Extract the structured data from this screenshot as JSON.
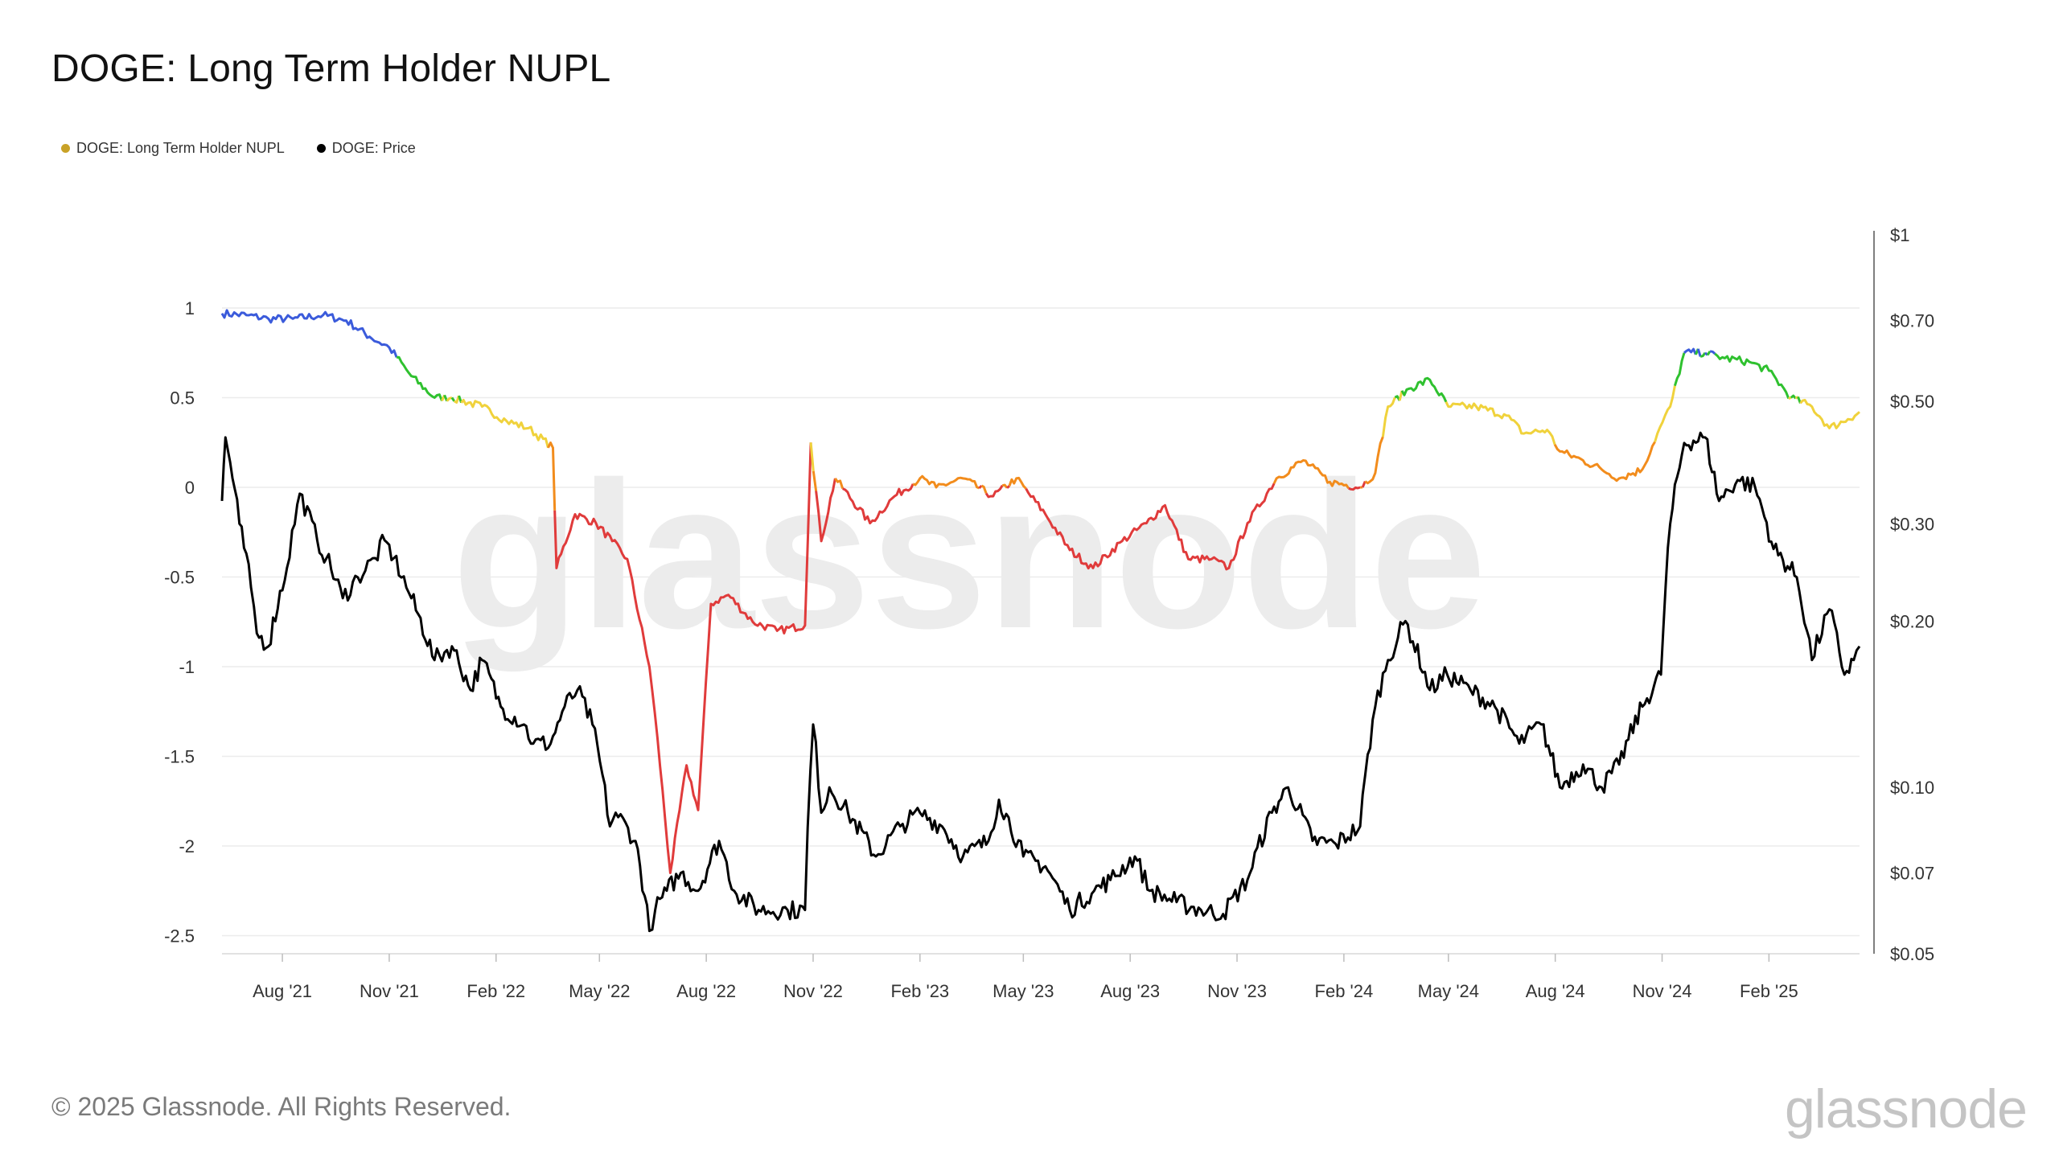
{
  "header": {
    "title": "DOGE: Long Term Holder NUPL"
  },
  "legend": {
    "items": [
      {
        "label": "DOGE: Long Term Holder NUPL",
        "color": "#c9a227"
      },
      {
        "label": "DOGE: Price",
        "color": "#000000"
      }
    ]
  },
  "footer": {
    "copyright": "© 2025 Glassnode. All Rights Reserved.",
    "logo": "glassnode"
  },
  "chart_data": {
    "type": "line",
    "title": "DOGE: Long Term Holder NUPL",
    "watermark": "glassnode",
    "x_tick_labels": [
      "Aug '21",
      "Nov '21",
      "Feb '22",
      "May '22",
      "Aug '22",
      "Nov '22",
      "Feb '23",
      "May '23",
      "Aug '23",
      "Nov '23",
      "Feb '24",
      "May '24",
      "Aug '24",
      "Nov '24",
      "Feb '25"
    ],
    "x_tick_dates": [
      "2021-08-01",
      "2021-11-01",
      "2022-02-01",
      "2022-05-01",
      "2022-08-01",
      "2022-11-01",
      "2023-02-01",
      "2023-05-01",
      "2023-08-01",
      "2023-11-01",
      "2024-02-01",
      "2024-05-01",
      "2024-08-01",
      "2024-11-01",
      "2025-02-01"
    ],
    "x_range": [
      "2021-06-10",
      "2025-04-20"
    ],
    "y_left": {
      "ticks": [
        1,
        0.5,
        0,
        -0.5,
        -1,
        -1.5,
        -2,
        -2.5
      ],
      "tick_labels": [
        "1",
        "0.5",
        "0",
        "-0.5",
        "-1",
        "-1.5",
        "-2",
        "-2.5"
      ],
      "range": [
        -2.6,
        1.1
      ]
    },
    "y_right": {
      "scale": "log",
      "ticks": [
        1,
        0.7,
        0.5,
        0.3,
        0.2,
        0.1,
        0.07,
        0.05
      ],
      "tick_labels": [
        "$1",
        "$0.70",
        "$0.50",
        "$0.30",
        "$0.20",
        "$0.10",
        "$0.07",
        "$0.05"
      ],
      "range": [
        0.05,
        1
      ]
    },
    "grid": true,
    "legend_position": "top-left",
    "nupl_color_bands": [
      {
        "min": 0.75,
        "color": "#3b5bdb"
      },
      {
        "min": 0.5,
        "color": "#2fc12f"
      },
      {
        "min": 0.25,
        "color": "#f0d23c"
      },
      {
        "min": 0.0,
        "color": "#f28c1c"
      },
      {
        "min": -9,
        "color": "#e03b3b"
      }
    ],
    "series": [
      {
        "name": "DOGE: Long Term Holder NUPL",
        "axis": "left",
        "x": [
          "2021-06-10",
          "2021-07-01",
          "2021-07-20",
          "2021-08-10",
          "2021-09-05",
          "2021-09-25",
          "2021-10-15",
          "2021-11-01",
          "2021-11-20",
          "2021-12-10",
          "2021-12-25",
          "2022-01-20",
          "2022-02-10",
          "2022-03-01",
          "2022-03-22",
          "2022-03-25",
          "2022-04-10",
          "2022-04-28",
          "2022-05-12",
          "2022-05-25",
          "2022-06-13",
          "2022-06-20",
          "2022-07-01",
          "2022-07-15",
          "2022-07-25",
          "2022-08-05",
          "2022-08-20",
          "2022-09-10",
          "2022-10-01",
          "2022-10-25",
          "2022-10-30",
          "2022-11-08",
          "2022-11-20",
          "2022-12-20",
          "2023-01-10",
          "2023-02-01",
          "2023-02-15",
          "2023-03-10",
          "2023-04-05",
          "2023-04-25",
          "2023-05-20",
          "2023-06-10",
          "2023-06-30",
          "2023-07-25",
          "2023-08-15",
          "2023-08-31",
          "2023-09-20",
          "2023-10-10",
          "2023-10-25",
          "2023-11-10",
          "2023-12-05",
          "2023-12-28",
          "2024-01-20",
          "2024-02-15",
          "2024-02-28",
          "2024-03-10",
          "2024-03-28",
          "2024-04-15",
          "2024-05-01",
          "2024-05-25",
          "2024-06-20",
          "2024-07-05",
          "2024-07-25",
          "2024-08-05",
          "2024-08-25",
          "2024-09-10",
          "2024-09-25",
          "2024-10-15",
          "2024-10-28",
          "2024-11-08",
          "2024-11-20",
          "2024-12-08",
          "2024-12-25",
          "2025-01-15",
          "2025-02-01",
          "2025-02-20",
          "2025-03-10",
          "2025-03-25",
          "2025-04-10",
          "2025-04-20"
        ],
        "values": [
          0.97,
          0.96,
          0.94,
          0.94,
          0.96,
          0.93,
          0.84,
          0.78,
          0.62,
          0.5,
          0.5,
          0.45,
          0.37,
          0.33,
          0.22,
          -0.45,
          -0.15,
          -0.2,
          -0.3,
          -0.4,
          -1.0,
          -1.4,
          -2.15,
          -1.55,
          -1.8,
          -0.65,
          -0.6,
          -0.75,
          -0.8,
          -0.77,
          0.25,
          -0.3,
          0.05,
          -0.2,
          -0.05,
          0.05,
          0.0,
          0.05,
          -0.05,
          0.05,
          -0.15,
          -0.35,
          -0.45,
          -0.3,
          -0.2,
          -0.1,
          -0.4,
          -0.4,
          -0.45,
          -0.2,
          0.05,
          0.15,
          0.03,
          0.0,
          0.08,
          0.45,
          0.55,
          0.6,
          0.45,
          0.45,
          0.4,
          0.3,
          0.32,
          0.2,
          0.15,
          0.1,
          0.05,
          0.1,
          0.3,
          0.45,
          0.75,
          0.75,
          0.72,
          0.7,
          0.65,
          0.5,
          0.45,
          0.33,
          0.38,
          0.42
        ]
      },
      {
        "name": "DOGE: Price",
        "axis": "right",
        "x": [
          "2021-06-10",
          "2021-06-13",
          "2021-06-25",
          "2021-07-05",
          "2021-07-10",
          "2021-07-20",
          "2021-08-05",
          "2021-08-16",
          "2021-08-31",
          "2021-09-08",
          "2021-09-22",
          "2021-10-05",
          "2021-10-20",
          "2021-10-28",
          "2021-11-05",
          "2021-11-20",
          "2021-12-10",
          "2021-12-25",
          "2022-01-10",
          "2022-01-20",
          "2022-02-05",
          "2022-02-25",
          "2022-03-05",
          "2022-03-20",
          "2022-04-01",
          "2022-04-12",
          "2022-04-25",
          "2022-05-10",
          "2022-05-15",
          "2022-06-01",
          "2022-06-13",
          "2022-06-18",
          "2022-06-28",
          "2022-07-10",
          "2022-07-25",
          "2022-08-12",
          "2022-08-25",
          "2022-09-15",
          "2022-10-10",
          "2022-10-25",
          "2022-11-01",
          "2022-11-08",
          "2022-11-15",
          "2022-12-01",
          "2022-12-25",
          "2023-01-15",
          "2023-02-01",
          "2023-02-20",
          "2023-03-10",
          "2023-04-01",
          "2023-04-10",
          "2023-05-01",
          "2023-05-20",
          "2023-06-10",
          "2023-07-01",
          "2023-07-15",
          "2023-08-05",
          "2023-08-18",
          "2023-09-10",
          "2023-10-01",
          "2023-10-20",
          "2023-11-10",
          "2023-12-01",
          "2023-12-15",
          "2024-01-05",
          "2024-01-25",
          "2024-02-15",
          "2024-02-28",
          "2024-03-10",
          "2024-03-25",
          "2024-04-15",
          "2024-04-30",
          "2024-05-20",
          "2024-06-10",
          "2024-07-01",
          "2024-07-20",
          "2024-08-05",
          "2024-08-25",
          "2024-09-10",
          "2024-09-25",
          "2024-10-15",
          "2024-10-31",
          "2024-11-08",
          "2024-11-20",
          "2024-12-08",
          "2024-12-20",
          "2025-01-05",
          "2025-01-20",
          "2025-02-05",
          "2025-02-25",
          "2025-03-10",
          "2025-03-25",
          "2025-04-07",
          "2025-04-15",
          "2025-04-20"
        ],
        "values": [
          0.33,
          0.43,
          0.3,
          0.23,
          0.19,
          0.18,
          0.25,
          0.34,
          0.28,
          0.26,
          0.22,
          0.24,
          0.26,
          0.28,
          0.26,
          0.22,
          0.17,
          0.18,
          0.15,
          0.17,
          0.14,
          0.13,
          0.12,
          0.12,
          0.14,
          0.15,
          0.13,
          0.085,
          0.09,
          0.08,
          0.055,
          0.06,
          0.065,
          0.07,
          0.065,
          0.08,
          0.065,
          0.06,
          0.06,
          0.06,
          0.13,
          0.09,
          0.1,
          0.09,
          0.075,
          0.085,
          0.09,
          0.085,
          0.075,
          0.08,
          0.095,
          0.075,
          0.072,
          0.06,
          0.065,
          0.068,
          0.075,
          0.065,
          0.062,
          0.06,
          0.059,
          0.068,
          0.09,
          0.1,
          0.08,
          0.079,
          0.085,
          0.14,
          0.17,
          0.2,
          0.15,
          0.16,
          0.15,
          0.14,
          0.12,
          0.13,
          0.1,
          0.11,
          0.1,
          0.11,
          0.14,
          0.16,
          0.3,
          0.42,
          0.43,
          0.33,
          0.36,
          0.35,
          0.27,
          0.24,
          0.17,
          0.21,
          0.16,
          0.17,
          0.18
        ]
      }
    ]
  }
}
